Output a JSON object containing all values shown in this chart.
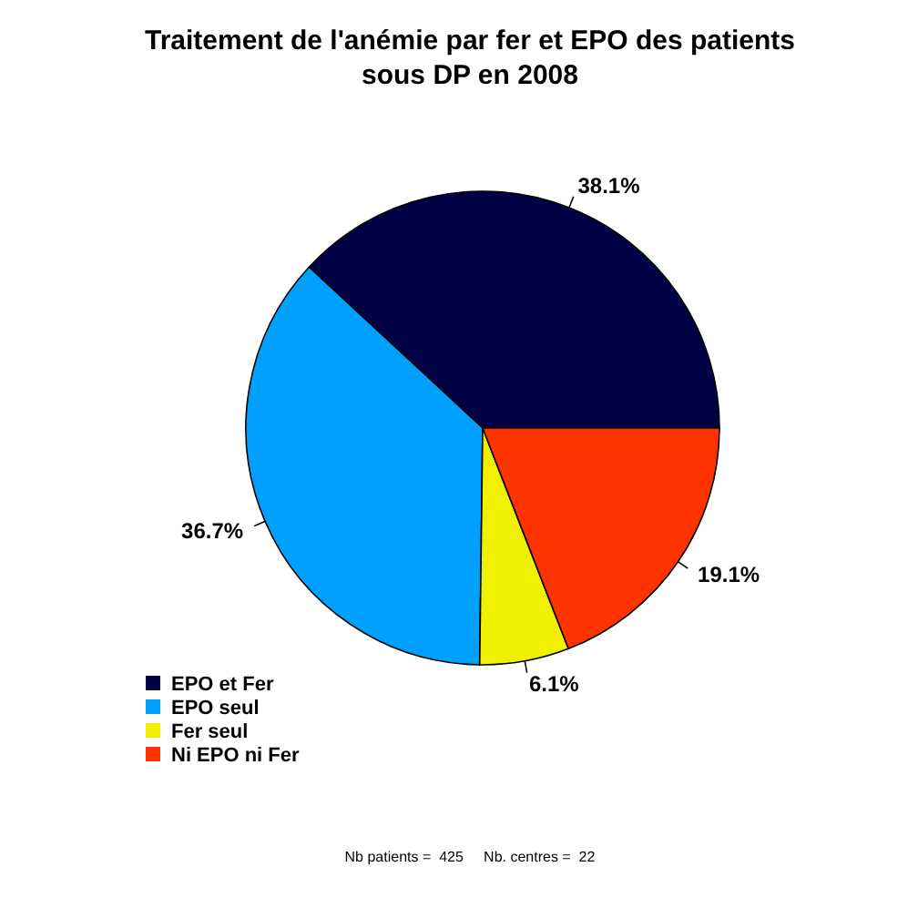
{
  "chart_data": {
    "type": "pie",
    "title": "Traitement de l'anémie par fer et EPO des patients\nsous DP en 2008",
    "categories": [
      "EPO et Fer",
      "EPO seul",
      "Fer seul",
      "Ni EPO ni Fer"
    ],
    "values": [
      38.1,
      36.7,
      6.1,
      19.1
    ],
    "colors": [
      "#000044",
      "#00a0ff",
      "#f0f000",
      "#ff3300"
    ],
    "value_labels": [
      "38.1%",
      "36.7%",
      "6.1%",
      "19.1%"
    ],
    "legend": "bottom left",
    "annotations": [
      "Nb patients =  425     Nb. centres =  22"
    ]
  }
}
